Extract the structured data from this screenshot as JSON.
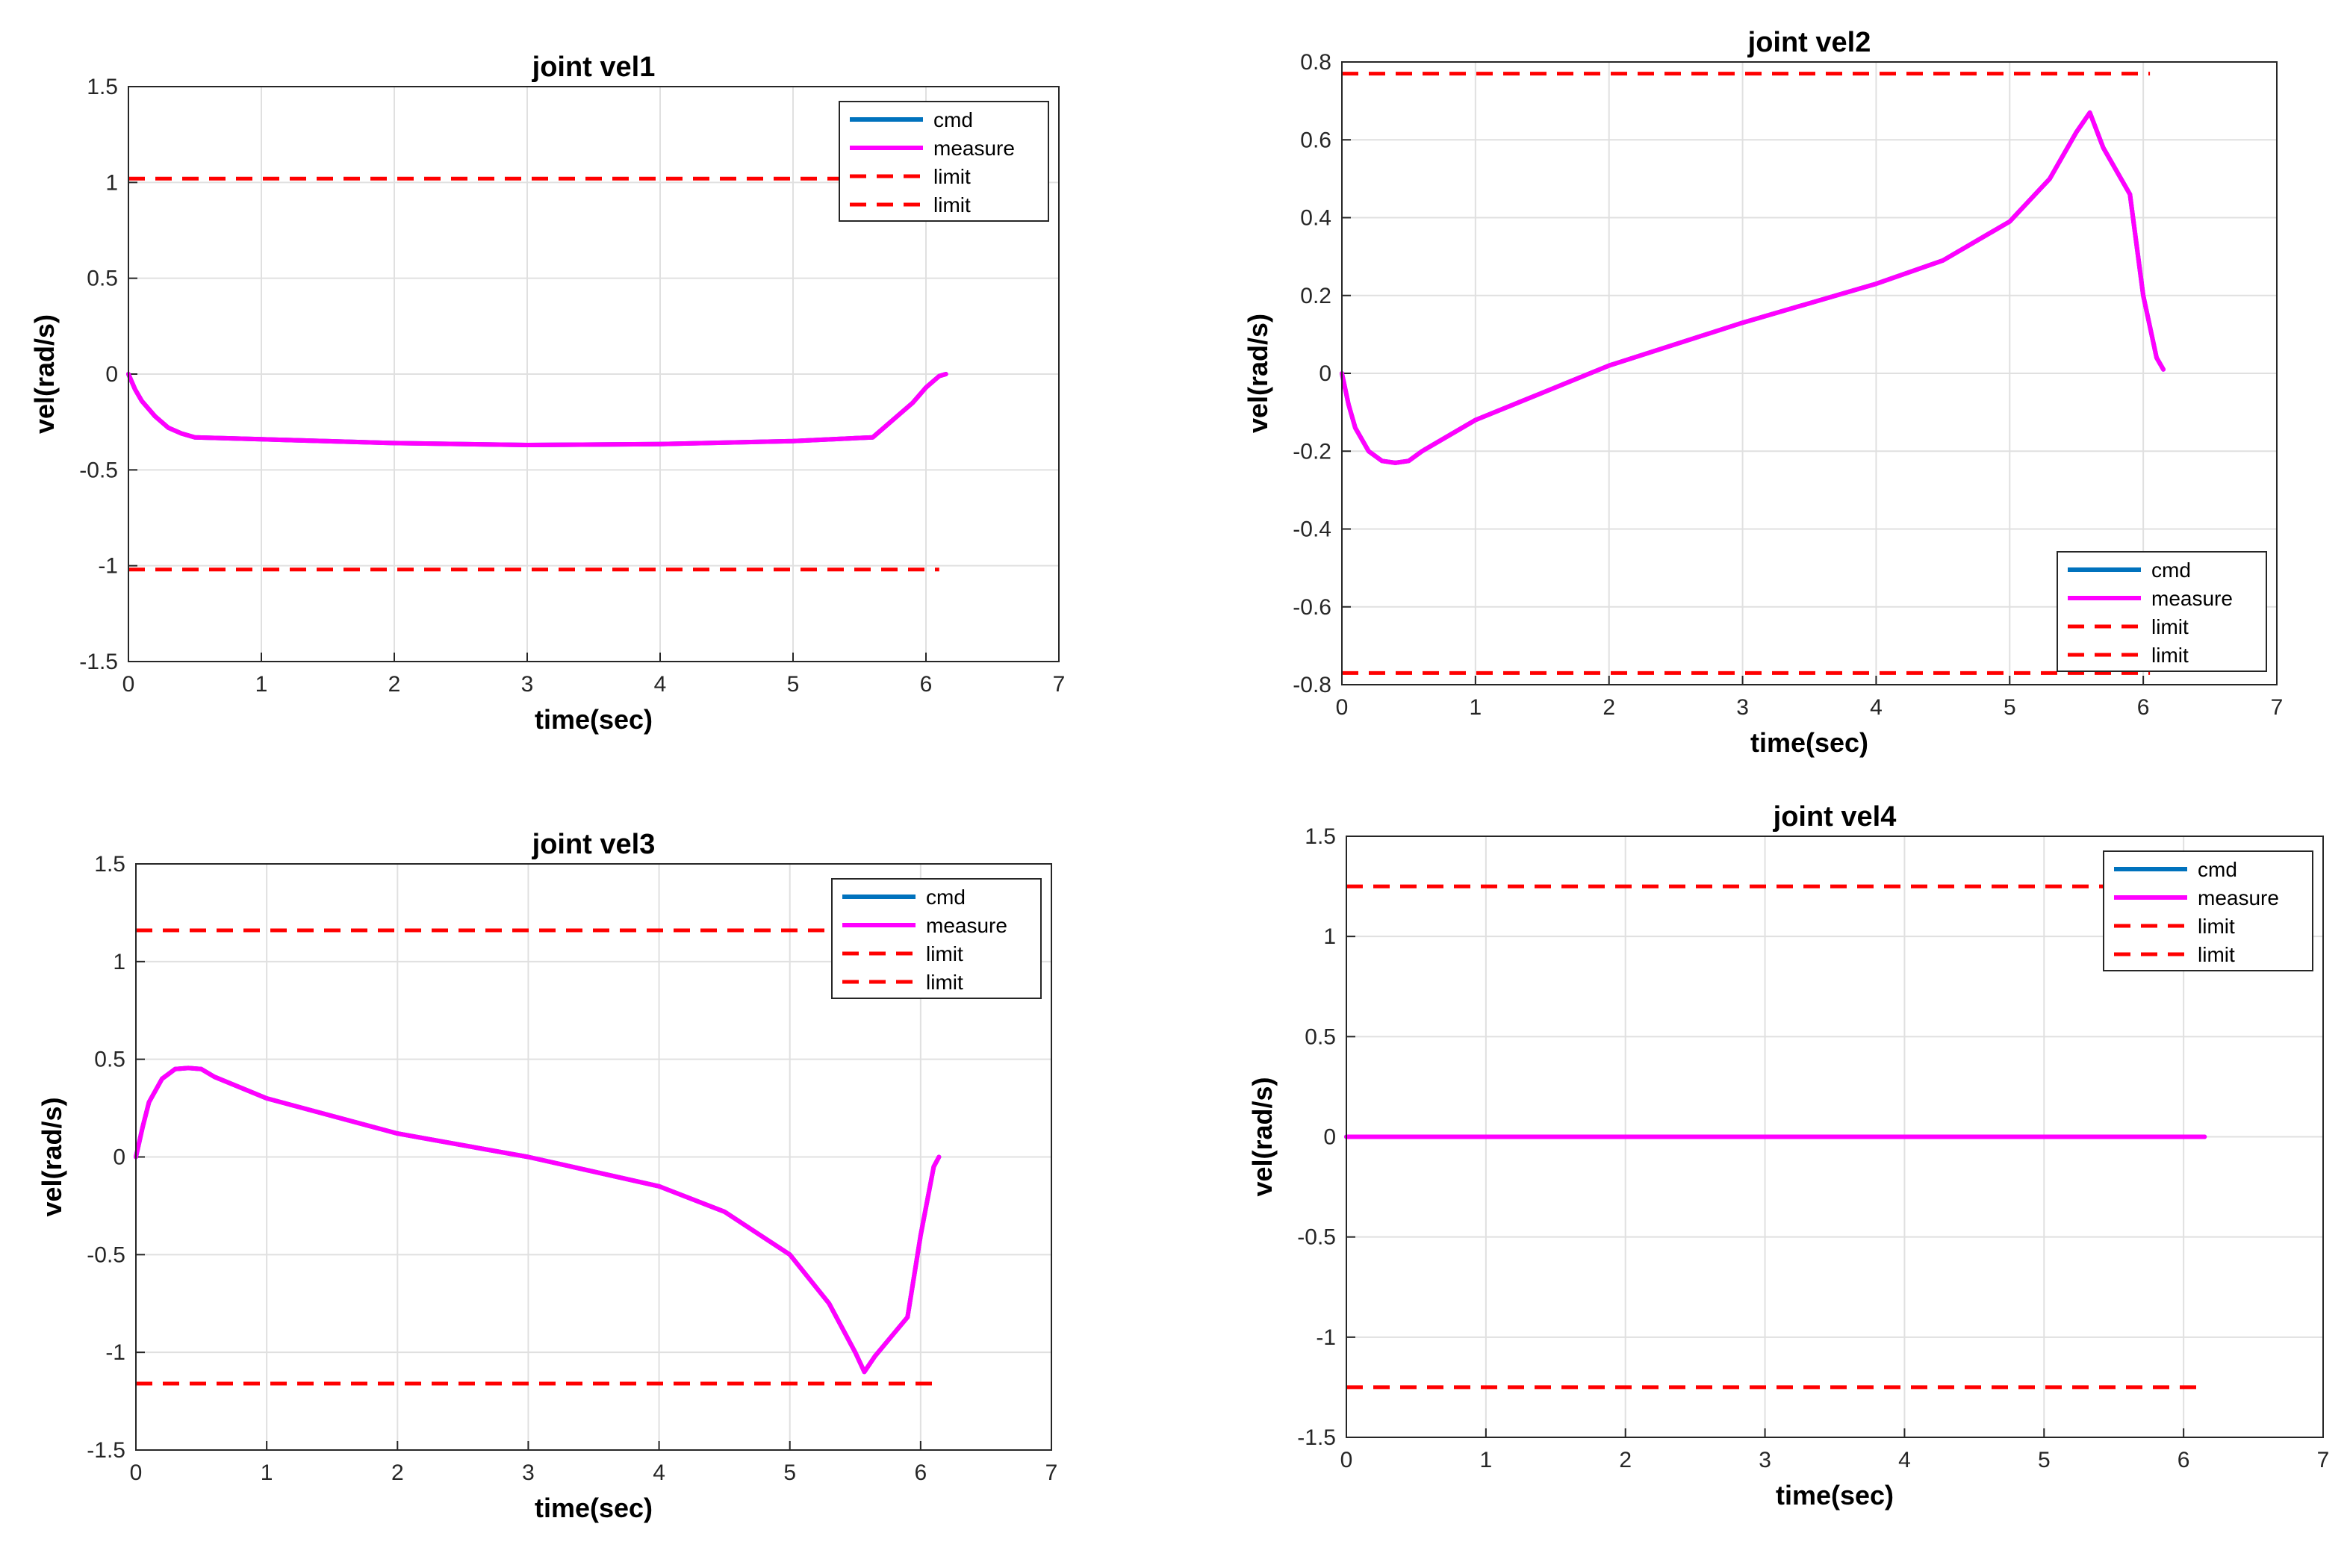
{
  "colors": {
    "cmd": "#0072BD",
    "measure": "#FF00FF",
    "limit": "#FF0000",
    "grid": "#E0E0E0",
    "axis": "#262626"
  },
  "chart_data": [
    {
      "type": "line",
      "title": "joint vel1",
      "xlabel": "time(sec)",
      "ylabel": "vel(rad/s)",
      "xlim": [
        0,
        7
      ],
      "ylim": [
        -1.5,
        1.5
      ],
      "xticks": [
        "0",
        "1",
        "2",
        "3",
        "4",
        "5",
        "6",
        "7"
      ],
      "yticks": [
        "1.5",
        "1",
        "0.5",
        "0",
        "-0.5",
        "-1",
        "-1.5"
      ],
      "legend": "top-right",
      "grid": true,
      "series": [
        {
          "name": "cmd",
          "x": [
            0,
            0.05,
            0.1,
            0.2,
            0.3,
            0.4,
            0.5,
            1,
            2,
            3,
            4,
            5,
            5.6,
            5.7,
            5.8,
            5.9,
            6,
            6.1,
            6.15
          ],
          "y": [
            0,
            -0.08,
            -0.14,
            -0.22,
            -0.28,
            -0.31,
            -0.33,
            -0.34,
            -0.36,
            -0.37,
            -0.365,
            -0.35,
            -0.33,
            -0.27,
            -0.21,
            -0.15,
            -0.07,
            -0.01,
            0
          ]
        },
        {
          "name": "measure",
          "x": [
            0,
            0.05,
            0.1,
            0.2,
            0.3,
            0.4,
            0.5,
            1,
            2,
            3,
            4,
            5,
            5.6,
            5.7,
            5.8,
            5.9,
            6,
            6.1,
            6.15
          ],
          "y": [
            0,
            -0.08,
            -0.14,
            -0.22,
            -0.28,
            -0.31,
            -0.33,
            -0.34,
            -0.36,
            -0.37,
            -0.365,
            -0.35,
            -0.33,
            -0.27,
            -0.21,
            -0.15,
            -0.07,
            -0.01,
            0
          ]
        },
        {
          "name": "limit",
          "x": [
            0,
            6.1
          ],
          "y": [
            1.02,
            1.02
          ]
        },
        {
          "name": "limit",
          "x": [
            0,
            6.1
          ],
          "y": [
            -1.02,
            -1.02
          ]
        }
      ]
    },
    {
      "type": "line",
      "title": "joint vel2",
      "xlabel": "time(sec)",
      "ylabel": "vel(rad/s)",
      "xlim": [
        0,
        7
      ],
      "ylim": [
        -0.8,
        0.8
      ],
      "xticks": [
        "0",
        "1",
        "2",
        "3",
        "4",
        "5",
        "6",
        "7"
      ],
      "yticks": [
        "0.8",
        "0.6",
        "0.4",
        "0.2",
        "0",
        "-0.2",
        "-0.4",
        "-0.6",
        "-0.8"
      ],
      "legend": "bottom-right",
      "grid": true,
      "series": [
        {
          "name": "cmd",
          "x": [
            0,
            0.05,
            0.1,
            0.2,
            0.3,
            0.4,
            0.5,
            0.6,
            1,
            1.5,
            2,
            3,
            4,
            4.5,
            5,
            5.3,
            5.5,
            5.6,
            5.7,
            5.8,
            5.9,
            6,
            6.1,
            6.15
          ],
          "y": [
            0,
            -0.08,
            -0.14,
            -0.2,
            -0.225,
            -0.23,
            -0.225,
            -0.2,
            -0.12,
            -0.05,
            0.02,
            0.13,
            0.23,
            0.29,
            0.39,
            0.5,
            0.62,
            0.67,
            0.58,
            0.52,
            0.46,
            0.2,
            0.04,
            0.01
          ]
        },
        {
          "name": "measure",
          "x": [
            0,
            0.05,
            0.1,
            0.2,
            0.3,
            0.4,
            0.5,
            0.6,
            1,
            1.5,
            2,
            3,
            4,
            4.5,
            5,
            5.3,
            5.5,
            5.6,
            5.7,
            5.8,
            5.9,
            6,
            6.1,
            6.15
          ],
          "y": [
            0,
            -0.08,
            -0.14,
            -0.2,
            -0.225,
            -0.23,
            -0.225,
            -0.2,
            -0.12,
            -0.05,
            0.02,
            0.13,
            0.23,
            0.29,
            0.39,
            0.5,
            0.62,
            0.67,
            0.58,
            0.52,
            0.46,
            0.2,
            0.04,
            0.01
          ]
        },
        {
          "name": "limit",
          "x": [
            0,
            6.05
          ],
          "y": [
            0.77,
            0.77
          ]
        },
        {
          "name": "limit",
          "x": [
            0,
            6.05
          ],
          "y": [
            -0.77,
            -0.77
          ]
        }
      ]
    },
    {
      "type": "line",
      "title": "joint vel3",
      "xlabel": "time(sec)",
      "ylabel": "vel(rad/s)",
      "xlim": [
        0,
        7
      ],
      "ylim": [
        -1.5,
        1.5
      ],
      "xticks": [
        "0",
        "1",
        "2",
        "3",
        "4",
        "5",
        "6",
        "7"
      ],
      "yticks": [
        "1.5",
        "1",
        "0.5",
        "0",
        "-0.5",
        "-1",
        "-1.5"
      ],
      "legend": "top-right",
      "grid": true,
      "series": [
        {
          "name": "cmd",
          "x": [
            0,
            0.05,
            0.1,
            0.2,
            0.3,
            0.4,
            0.5,
            0.6,
            1,
            2,
            3,
            4,
            4.5,
            5,
            5.3,
            5.5,
            5.57,
            5.65,
            5.8,
            5.9,
            6,
            6.1,
            6.14
          ],
          "y": [
            0,
            0.15,
            0.28,
            0.4,
            0.45,
            0.455,
            0.45,
            0.41,
            0.3,
            0.12,
            0,
            -0.15,
            -0.28,
            -0.5,
            -0.75,
            -1,
            -1.1,
            -1.02,
            -0.9,
            -0.82,
            -0.4,
            -0.05,
            0
          ]
        },
        {
          "name": "measure",
          "x": [
            0,
            0.05,
            0.1,
            0.2,
            0.3,
            0.4,
            0.5,
            0.6,
            1,
            2,
            3,
            4,
            4.5,
            5,
            5.3,
            5.5,
            5.57,
            5.65,
            5.8,
            5.9,
            6,
            6.1,
            6.14
          ],
          "y": [
            0,
            0.15,
            0.28,
            0.4,
            0.45,
            0.455,
            0.45,
            0.41,
            0.3,
            0.12,
            0,
            -0.15,
            -0.28,
            -0.5,
            -0.75,
            -1,
            -1.1,
            -1.02,
            -0.9,
            -0.82,
            -0.4,
            -0.05,
            0
          ]
        },
        {
          "name": "limit",
          "x": [
            0,
            6.1
          ],
          "y": [
            1.16,
            1.16
          ]
        },
        {
          "name": "limit",
          "x": [
            0,
            6.1
          ],
          "y": [
            -1.16,
            -1.16
          ]
        }
      ]
    },
    {
      "type": "line",
      "title": "joint vel4",
      "xlabel": "time(sec)",
      "ylabel": "vel(rad/s)",
      "xlim": [
        0,
        7
      ],
      "ylim": [
        -1.5,
        1.5
      ],
      "xticks": [
        "0",
        "1",
        "2",
        "3",
        "4",
        "5",
        "6",
        "7"
      ],
      "yticks": [
        "1.5",
        "1",
        "0.5",
        "0",
        "-0.5",
        "-1",
        "-1.5"
      ],
      "legend": "top-right",
      "grid": true,
      "series": [
        {
          "name": "cmd",
          "x": [
            0,
            6.15
          ],
          "y": [
            0,
            0
          ]
        },
        {
          "name": "measure",
          "x": [
            0,
            6.15
          ],
          "y": [
            0,
            0
          ]
        },
        {
          "name": "limit",
          "x": [
            0,
            6.15
          ],
          "y": [
            1.25,
            1.25
          ]
        },
        {
          "name": "limit",
          "x": [
            0,
            6.15
          ],
          "y": [
            -1.25,
            -1.25
          ]
        }
      ]
    }
  ]
}
